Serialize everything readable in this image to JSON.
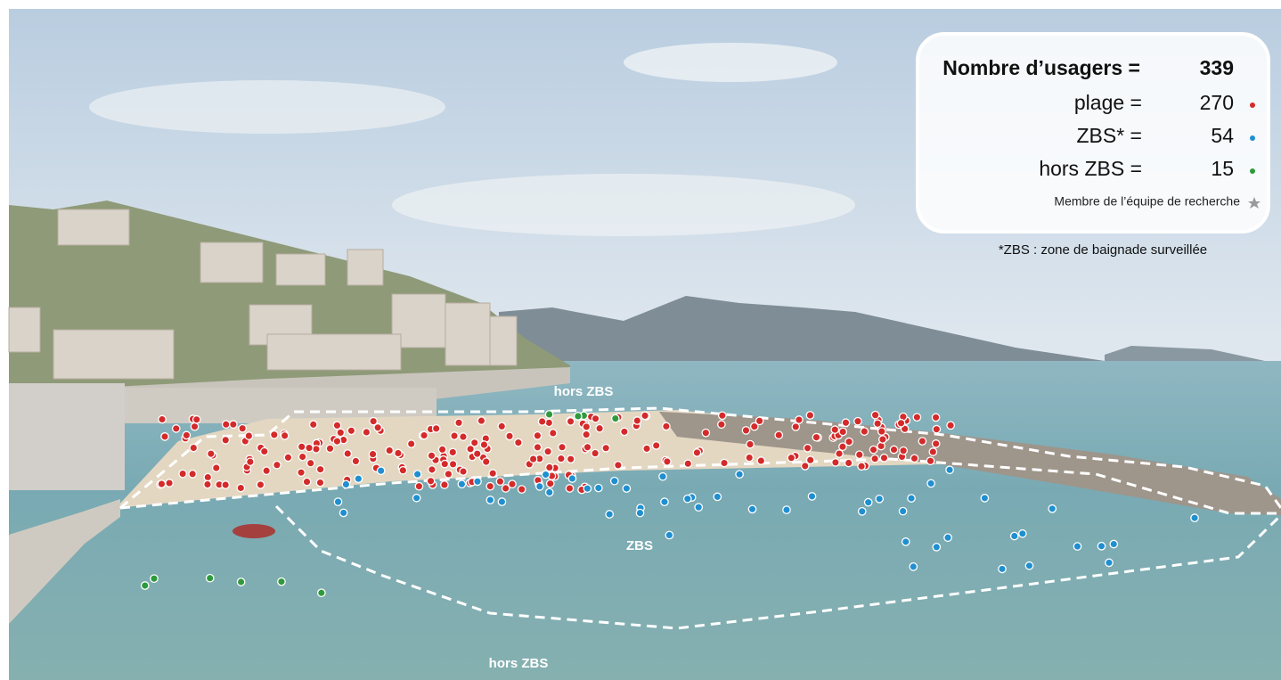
{
  "legend": {
    "title": "Nombre d’usagers =",
    "total": "339",
    "items": [
      {
        "label": "plage =",
        "count": "270",
        "color": "#d42a2a"
      },
      {
        "label": "ZBS* =",
        "count": "54",
        "color": "#1f8fd0"
      },
      {
        "label": "hors ZBS =",
        "count": "15",
        "color": "#2e9a3c"
      }
    ],
    "team_member": "Membre de l’équipe de recherche"
  },
  "footnote": "*ZBS : zone de baignade surveillée",
  "zones": {
    "hors_zbs_top": "hors ZBS",
    "zbs": "ZBS",
    "hors_zbs_bottom": "hors ZBS"
  }
}
